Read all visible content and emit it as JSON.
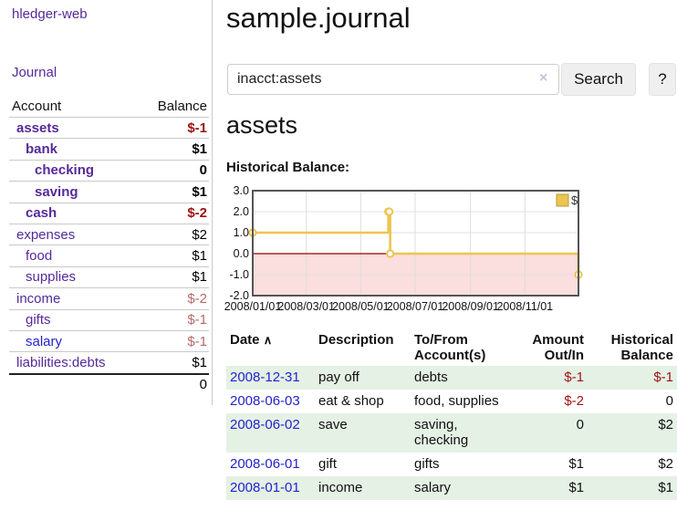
{
  "colors": {
    "link_purple": "#552a9b",
    "link_blue": "#2323cc",
    "negative_strong": "#9c1111",
    "negative_muted": "#b56a6a",
    "stripe_green": "#e4f1e4",
    "chart_line_gold": "#ecc54f",
    "chart_negative_fill": "#fbdede",
    "chart_zero_line": "#990000"
  },
  "sidebar": {
    "brand": "hledger-web",
    "journal_link": "Journal",
    "accounts": {
      "header_account": "Account",
      "header_balance": "Balance",
      "rows": [
        {
          "name": "assets",
          "indent": 1,
          "bold": true,
          "link_color": "purple",
          "balance": "$-1",
          "balance_color": "neg_strong"
        },
        {
          "name": "bank",
          "indent": 2,
          "bold": true,
          "link_color": "purple",
          "balance": "$1",
          "balance_color": "normal"
        },
        {
          "name": "checking",
          "indent": 3,
          "bold": true,
          "link_color": "purple",
          "balance": "0",
          "balance_color": "normal"
        },
        {
          "name": "saving",
          "indent": 3,
          "bold": true,
          "link_color": "purple",
          "balance": "$1",
          "balance_color": "normal"
        },
        {
          "name": "cash",
          "indent": 2,
          "bold": true,
          "link_color": "purple",
          "balance": "$-2",
          "balance_color": "neg_strong"
        },
        {
          "name": "expenses",
          "indent": 1,
          "bold": false,
          "link_color": "purple",
          "balance": "$2",
          "balance_color": "normal"
        },
        {
          "name": "food",
          "indent": 2,
          "bold": false,
          "link_color": "purple",
          "balance": "$1",
          "balance_color": "normal"
        },
        {
          "name": "supplies",
          "indent": 2,
          "bold": false,
          "link_color": "purple",
          "balance": "$1",
          "balance_color": "normal"
        },
        {
          "name": "income",
          "indent": 1,
          "bold": false,
          "link_color": "purple",
          "balance": "$-2",
          "balance_color": "neg_muted"
        },
        {
          "name": "gifts",
          "indent": 2,
          "bold": false,
          "link_color": "purple",
          "balance": "$-1",
          "balance_color": "neg_muted"
        },
        {
          "name": "salary",
          "indent": 2,
          "bold": false,
          "link_color": "blue",
          "balance": "$-1",
          "balance_color": "neg_muted"
        },
        {
          "name": "liabilities:debts",
          "indent": 1,
          "bold": false,
          "link_color": "purple",
          "balance": "$1",
          "balance_color": "normal"
        }
      ],
      "total": "0"
    }
  },
  "main": {
    "title": "sample.journal",
    "search": {
      "value": "inacct:assets",
      "clear_icon": "×",
      "search_button": "Search",
      "help_button": "?"
    },
    "heading": "assets",
    "chart_label": "Historical Balance:"
  },
  "chart_data": {
    "type": "line",
    "step": true,
    "title": "Historical Balance",
    "legend": "$",
    "legend_position": "top-right",
    "ylim": [
      -2.0,
      3.0
    ],
    "x_range": [
      "2008-01-01",
      "2008-12-31"
    ],
    "y_ticks": [
      {
        "label": "3.0",
        "value": 3
      },
      {
        "label": "2.0",
        "value": 2
      },
      {
        "label": "1.0",
        "value": 1
      },
      {
        "label": "0.0",
        "value": 0
      },
      {
        "label": "-1.0",
        "value": -1
      },
      {
        "label": "-2.0",
        "value": -2
      }
    ],
    "x_ticks": [
      {
        "label": "2008/01/01",
        "date": "2008-01-01"
      },
      {
        "label": "2008/03/01",
        "date": "2008-03-01"
      },
      {
        "label": "2008/05/01",
        "date": "2008-05-01"
      },
      {
        "label": "2008/07/01",
        "date": "2008-07-01"
      },
      {
        "label": "2008/09/01",
        "date": "2008-09-01"
      },
      {
        "label": "2008/11/01",
        "date": "2008-11-01"
      }
    ],
    "series": [
      {
        "name": "$",
        "x": [
          "2008-01-01",
          "2008-06-01",
          "2008-06-02",
          "2008-06-03",
          "2008-12-31"
        ],
        "values": [
          1,
          2,
          2,
          0,
          -1
        ]
      }
    ],
    "grid": true,
    "negative_region_shaded": true
  },
  "register": {
    "headers": {
      "date": "Date",
      "sort_indicator": "∧",
      "description": "Description",
      "accounts": "To/From\nAccount(s)",
      "amount": "Amount\nOut/In",
      "balance": "Historical\nBalance"
    },
    "rows": [
      {
        "date": "2008-12-31",
        "description": "pay off",
        "accounts": "debts",
        "amount": "$-1",
        "amount_negative": true,
        "balance": "$-1",
        "balance_negative": true,
        "stripe": true
      },
      {
        "date": "2008-06-03",
        "description": "eat & shop",
        "accounts": "food, supplies",
        "amount": "$-2",
        "amount_negative": true,
        "balance": "0",
        "balance_negative": false,
        "stripe": false
      },
      {
        "date": "2008-06-02",
        "description": "save",
        "accounts": "saving,\nchecking",
        "amount": "0",
        "amount_negative": false,
        "balance": "$2",
        "balance_negative": false,
        "stripe": true
      },
      {
        "date": "2008-06-01",
        "description": "gift",
        "accounts": "gifts",
        "amount": "$1",
        "amount_negative": false,
        "balance": "$2",
        "balance_negative": false,
        "stripe": false
      },
      {
        "date": "2008-01-01",
        "description": "income",
        "accounts": "salary",
        "amount": "$1",
        "amount_negative": false,
        "balance": "$1",
        "balance_negative": false,
        "stripe": true
      }
    ]
  }
}
